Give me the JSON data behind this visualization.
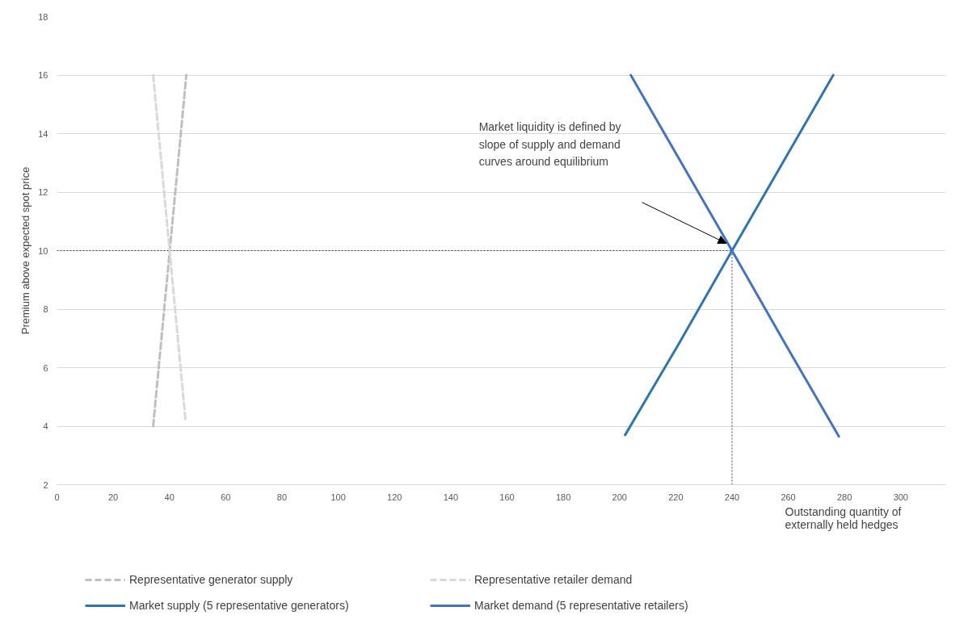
{
  "chart_data": {
    "type": "line",
    "xlabel": "Outstanding quantity of externally held hedges",
    "ylabel": "Premium above expected spot price",
    "xlim": [
      0,
      316
    ],
    "ylim": [
      2,
      18
    ],
    "xticks": [
      0,
      20,
      40,
      60,
      80,
      100,
      120,
      140,
      160,
      180,
      200,
      220,
      240,
      260,
      280,
      300
    ],
    "yticks": [
      2,
      4,
      6,
      8,
      10,
      12,
      14,
      16,
      18
    ],
    "grid": "y",
    "legend": "bottom",
    "series": [
      {
        "name": "Representative generator supply",
        "color": "#bfbfbf",
        "line_style": "dashed",
        "x": [
          34.2,
          46
        ],
        "values": [
          4,
          16
        ]
      },
      {
        "name": "Representative retailer demand",
        "color": "#d9d9d9",
        "line_style": "dashed",
        "x": [
          34.2,
          45.7
        ],
        "values": [
          16,
          4.2
        ]
      },
      {
        "name": "Market supply (5 representative generators)",
        "color": "#2e75b6",
        "line_style": "solid",
        "x": [
          202,
          221,
          240,
          258,
          276
        ],
        "values": [
          3.7,
          6.8,
          10,
          13,
          16
        ]
      },
      {
        "name": "Market demand (5 representative retailers)",
        "color": "#4472c4",
        "line_style": "solid",
        "x": [
          204,
          222,
          240,
          259,
          278
        ],
        "values": [
          16,
          13,
          10,
          6.8,
          3.65
        ]
      }
    ],
    "ref_lines": [
      {
        "axis": "y",
        "value": 10,
        "color": "#404040",
        "line_style": "dotted"
      },
      {
        "axis": "x",
        "value": 240,
        "color": "#404040",
        "line_style": "dotted"
      }
    ],
    "annotations": [
      "Market liquidity is defined by slope of supply and demand curves around equilibrium"
    ]
  }
}
